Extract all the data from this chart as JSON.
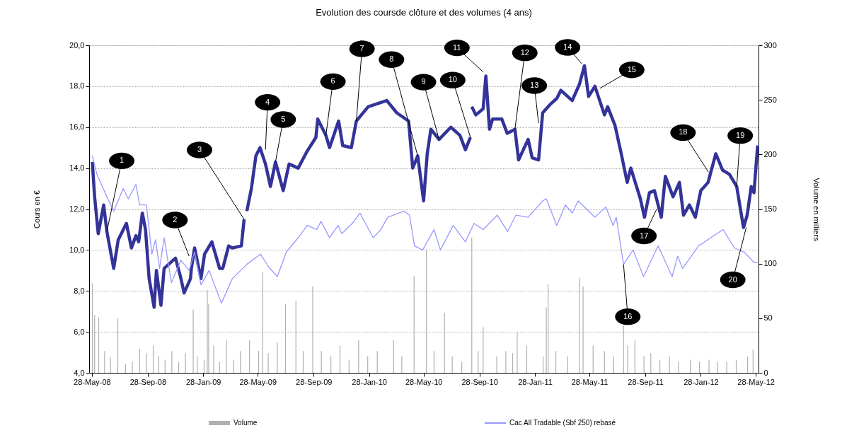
{
  "chart_data": {
    "type": "line",
    "title": "Evolution des coursde clôture et des volumes (4 ans)",
    "ylabel": "Cours en €",
    "y2label": "Volume en milliers",
    "xlim": [
      "2008-05-22",
      "2012-06-03"
    ],
    "xticks": [
      {
        "value": "2008-05-28",
        "label": "28-May-08"
      },
      {
        "value": "2008-09-28",
        "label": "28-Sep-08"
      },
      {
        "value": "2009-01-28",
        "label": "28-Jan-09"
      },
      {
        "value": "2009-05-28",
        "label": "28-May-09"
      },
      {
        "value": "2009-09-28",
        "label": "28-Sep-09"
      },
      {
        "value": "2010-01-28",
        "label": "28-Jan-10"
      },
      {
        "value": "2010-05-28",
        "label": "28-May-10"
      },
      {
        "value": "2010-09-28",
        "label": "28-Sep-10"
      },
      {
        "value": "2011-01-28",
        "label": "28-Jan-11"
      },
      {
        "value": "2011-05-28",
        "label": "28-May-11"
      },
      {
        "value": "2011-09-28",
        "label": "28-Sep-11"
      },
      {
        "value": "2012-01-28",
        "label": "28-Jan-12"
      },
      {
        "value": "2012-05-28",
        "label": "28-May-12"
      }
    ],
    "ylim": [
      4,
      20
    ],
    "yticks": [
      {
        "value": 4,
        "label": "4,0"
      },
      {
        "value": 6,
        "label": "6,0"
      },
      {
        "value": 8,
        "label": "8,0"
      },
      {
        "value": 10,
        "label": "10,0"
      },
      {
        "value": 12,
        "label": "12,0"
      },
      {
        "value": 14,
        "label": "14,0"
      },
      {
        "value": 16,
        "label": "16,0"
      },
      {
        "value": 18,
        "label": "18,0"
      },
      {
        "value": 20,
        "label": "20,0"
      }
    ],
    "y2lim": [
      0,
      300
    ],
    "y2ticks": [
      0,
      50,
      100,
      150,
      200,
      250,
      300
    ],
    "grid": "y",
    "legend": "bottom",
    "series": [
      {
        "name": "Volume",
        "type": "bar",
        "axis": "y2",
        "color": "#b0b0b0",
        "x": [
          "2008-05-29",
          "2008-06-03",
          "2008-06-12",
          "2008-06-25",
          "2008-07-08",
          "2008-07-24",
          "2008-08-10",
          "2008-08-25",
          "2008-09-10",
          "2008-09-25",
          "2008-10-10",
          "2008-10-22",
          "2008-11-05",
          "2008-11-20",
          "2008-12-05",
          "2008-12-20",
          "2009-01-06",
          "2009-01-15",
          "2009-01-30",
          "2009-02-06",
          "2009-02-09",
          "2009-02-20",
          "2009-03-05",
          "2009-03-20",
          "2009-04-05",
          "2009-04-20",
          "2009-05-10",
          "2009-05-30",
          "2009-06-08",
          "2009-06-20",
          "2009-07-10",
          "2009-07-28",
          "2009-08-20",
          "2009-09-05",
          "2009-09-26",
          "2009-10-15",
          "2009-11-05",
          "2009-11-25",
          "2009-12-15",
          "2010-01-05",
          "2010-01-25",
          "2010-02-15",
          "2010-03-23",
          "2010-04-10",
          "2010-05-07",
          "2010-06-03",
          "2010-06-20",
          "2010-07-13",
          "2010-07-30",
          "2010-08-20",
          "2010-09-11",
          "2010-09-25",
          "2010-10-06",
          "2010-11-05",
          "2010-11-25",
          "2010-12-10",
          "2010-12-20",
          "2011-01-10",
          "2011-02-15",
          "2011-02-22",
          "2011-02-26",
          "2011-03-15",
          "2011-04-10",
          "2011-05-06",
          "2011-05-14",
          "2011-06-05",
          "2011-06-30",
          "2011-07-20",
          "2011-08-11",
          "2011-08-20",
          "2011-09-05",
          "2011-09-25",
          "2011-10-10",
          "2011-10-30",
          "2011-11-20",
          "2011-12-10",
          "2012-01-05",
          "2012-01-25",
          "2012-02-15",
          "2012-03-05",
          "2012-03-25",
          "2012-04-15",
          "2012-05-10",
          "2012-05-22"
        ],
        "values": [
          82,
          53,
          51,
          20,
          14,
          50,
          8,
          10,
          22,
          18,
          25,
          15,
          12,
          20,
          10,
          18,
          58,
          15,
          12,
          76,
          63,
          25,
          10,
          30,
          12,
          20,
          30,
          20,
          92,
          18,
          28,
          63,
          66,
          20,
          79,
          20,
          15,
          25,
          12,
          30,
          15,
          20,
          30,
          15,
          89,
          113,
          20,
          55,
          15,
          10,
          124,
          20,
          42,
          15,
          20,
          18,
          37,
          25,
          15,
          60,
          81,
          20,
          15,
          87,
          79,
          25,
          20,
          15,
          43,
          25,
          30,
          15,
          18,
          12,
          15,
          10,
          12,
          10,
          12,
          10,
          10,
          12,
          15,
          21
        ]
      },
      {
        "color": "#333399",
        "x": [
          "2008-05-29",
          "2008-06-03",
          "2008-06-11",
          "2008-06-23",
          "2008-06-30",
          "2008-07-15",
          "2008-07-25",
          "2008-08-12",
          "2008-08-23",
          "2008-09-02",
          "2008-09-08",
          "2008-09-16",
          "2008-09-23",
          "2008-10-01",
          "2008-10-12",
          "2008-10-17",
          "2008-10-27",
          "2008-11-03",
          "2008-11-28",
          "2008-12-09",
          "2008-12-17",
          "2008-12-31",
          "2009-01-02",
          "2009-01-09",
          "2009-01-23",
          "2009-01-31",
          "2009-02-16",
          "2009-03-05",
          "2009-03-12",
          "2009-03-25",
          "2009-04-02",
          "2009-04-22",
          "2009-04-28",
          "2009-05-01",
          "2009-05-04",
          "2009-05-14",
          "2009-05-24",
          "2009-06-02",
          "2009-06-14",
          "2009-06-25",
          "2009-07-06",
          "2009-07-23",
          "2009-08-05",
          "2009-08-25",
          "2009-09-13",
          "2009-10-03",
          "2009-10-07",
          "2009-10-25",
          "2009-11-02",
          "2009-11-22",
          "2009-12-01",
          "2009-12-20",
          "2009-12-31",
          "2010-01-26",
          "2010-03-08",
          "2010-03-30",
          "2010-04-25",
          "2010-05-04",
          "2010-05-15",
          "2010-05-28",
          "2010-06-05",
          "2010-06-13",
          "2010-07-01",
          "2010-07-27",
          "2010-08-16",
          "2010-08-28",
          "2010-09-08",
          "2010-09-10",
          "2010-09-11",
          "2010-09-20",
          "2010-10-06",
          "2010-10-12",
          "2010-10-20",
          "2010-10-27",
          "2010-11-16",
          "2010-11-28",
          "2010-12-15",
          "2010-12-23",
          "2011-01-13",
          "2011-01-22",
          "2011-02-05",
          "2011-02-14",
          "2011-03-02",
          "2011-03-17",
          "2011-03-26",
          "2011-04-20",
          "2011-05-06",
          "2011-05-17",
          "2011-05-26",
          "2011-06-09",
          "2011-06-30",
          "2011-07-07",
          "2011-07-23",
          "2011-08-06",
          "2011-08-19",
          "2011-08-27",
          "2011-09-17",
          "2011-09-26",
          "2011-10-07",
          "2011-10-18",
          "2011-11-02",
          "2011-11-11",
          "2011-11-28",
          "2011-12-12",
          "2011-12-21",
          "2012-01-03",
          "2012-01-16",
          "2012-01-28",
          "2012-02-13",
          "2012-03-01",
          "2012-03-16",
          "2012-03-31",
          "2012-04-16",
          "2012-05-01",
          "2012-05-09",
          "2012-05-18",
          "2012-05-24",
          "2012-06-01"
        ],
        "values": [
          14.3,
          12.6,
          10.8,
          12.2,
          10.9,
          9.1,
          10.5,
          11.3,
          10.1,
          10.7,
          10.4,
          11.8,
          11.0,
          8.6,
          7.2,
          9.0,
          7.3,
          9.1,
          9.6,
          8.7,
          7.9,
          8.6,
          9.1,
          10.1,
          8.6,
          9.8,
          10.4,
          9.1,
          9.1,
          10.2,
          10.1,
          10.2,
          11.5,
          null,
          11.9,
          13.0,
          14.6,
          15.0,
          14.2,
          13.1,
          14.3,
          12.9,
          14.2,
          14.0,
          14.8,
          15.5,
          16.4,
          15.6,
          15.0,
          16.3,
          15.1,
          15.0,
          16.3,
          17.0,
          17.3,
          16.7,
          16.3,
          14.0,
          14.6,
          12.4,
          14.7,
          15.9,
          15.4,
          16.0,
          15.6,
          14.9,
          15.5,
          null,
          17.0,
          16.6,
          16.9,
          18.5,
          15.9,
          16.4,
          16.4,
          15.7,
          15.9,
          14.4,
          15.4,
          14.5,
          14.4,
          16.7,
          17.1,
          17.4,
          17.8,
          17.3,
          18.1,
          19.0,
          17.5,
          18.0,
          16.6,
          17.0,
          16.1,
          14.7,
          13.3,
          14.0,
          12.5,
          11.6,
          12.8,
          12.9,
          11.6,
          13.6,
          12.6,
          13.3,
          11.7,
          12.2,
          11.6,
          12.9,
          13.3,
          14.7,
          13.9,
          13.7,
          13.1,
          11.1,
          11.7,
          13.1,
          12.8,
          15.1
        ]
      },
      {
        "name": "Cac All Tradable (Sbf 250) rebasé",
        "color": "#9999ff",
        "x": [
          "2008-05-29",
          "2008-06-08",
          "2008-06-30",
          "2008-07-15",
          "2008-08-05",
          "2008-08-16",
          "2008-09-02",
          "2008-09-10",
          "2008-09-25",
          "2008-10-07",
          "2008-10-15",
          "2008-10-24",
          "2008-11-03",
          "2008-11-19",
          "2008-12-10",
          "2008-12-28",
          "2009-01-09",
          "2009-01-23",
          "2009-02-10",
          "2009-03-09",
          "2009-04-02",
          "2009-05-04",
          "2009-06-03",
          "2009-06-20",
          "2009-07-10",
          "2009-07-30",
          "2009-08-25",
          "2009-09-14",
          "2009-10-05",
          "2009-10-14",
          "2009-11-02",
          "2009-11-21",
          "2009-11-29",
          "2009-12-22",
          "2010-01-08",
          "2010-02-06",
          "2010-02-23",
          "2010-03-10",
          "2010-04-15",
          "2010-04-27",
          "2010-05-08",
          "2010-05-26",
          "2010-06-20",
          "2010-07-04",
          "2010-08-01",
          "2010-08-28",
          "2010-09-16",
          "2010-10-06",
          "2010-11-06",
          "2010-11-29",
          "2010-12-17",
          "2011-01-13",
          "2011-02-14",
          "2011-02-22",
          "2011-03-17",
          "2011-04-05",
          "2011-04-20",
          "2011-05-03",
          "2011-06-09",
          "2011-07-03",
          "2011-07-19",
          "2011-07-26",
          "2011-08-11",
          "2011-09-01",
          "2011-09-24",
          "2011-10-26",
          "2011-11-26",
          "2011-12-08",
          "2011-12-19",
          "2012-01-23",
          "2012-02-19",
          "2012-03-17",
          "2012-04-11",
          "2012-05-02",
          "2012-05-24",
          "2012-06-01"
        ],
        "values": [
          14.6,
          13.7,
          12.6,
          11.9,
          13.0,
          12.5,
          13.2,
          12.2,
          12.2,
          9.8,
          10.5,
          9.1,
          10.6,
          8.4,
          9.5,
          9.0,
          9.9,
          8.3,
          9.0,
          7.4,
          8.6,
          9.3,
          9.8,
          9.2,
          8.7,
          9.9,
          10.6,
          11.2,
          11.0,
          11.4,
          10.6,
          11.2,
          10.8,
          11.3,
          11.8,
          10.6,
          11.0,
          11.6,
          11.9,
          11.7,
          10.2,
          10.0,
          11.0,
          10.0,
          11.2,
          10.4,
          11.3,
          11.0,
          11.7,
          10.9,
          11.7,
          11.6,
          12.4,
          12.5,
          11.2,
          12.2,
          11.8,
          12.4,
          11.6,
          12.1,
          11.2,
          11.6,
          9.3,
          10.0,
          8.7,
          10.2,
          8.7,
          9.7,
          9.1,
          10.2,
          10.6,
          11.0,
          10.1,
          9.9,
          9.4,
          9.4
        ]
      }
    ],
    "annotations": [
      {
        "text": "1",
        "x": "2008-06-30",
        "y": 10.9
      },
      {
        "text": "2",
        "x": "2008-12-28",
        "y": 9.7
      },
      {
        "text": "3",
        "x": "2009-04-28",
        "y": 11.5
      },
      {
        "text": "4",
        "x": "2009-06-14",
        "y": 14.9
      },
      {
        "text": "5",
        "x": "2009-07-06",
        "y": 14.3
      },
      {
        "text": "6",
        "x": "2009-10-25",
        "y": 15.6
      },
      {
        "text": "7",
        "x": "2009-12-31",
        "y": 16.3
      },
      {
        "text": "8",
        "x": "2010-05-15",
        "y": 14.6
      },
      {
        "text": "9",
        "x": "2010-07-01",
        "y": 15.4
      },
      {
        "text": "10",
        "x": "2010-09-08",
        "y": 15.5
      },
      {
        "text": "11",
        "x": "2010-10-06",
        "y": 18.7
      },
      {
        "text": "12",
        "x": "2010-12-15",
        "y": 15.9
      },
      {
        "text": "13",
        "x": "2011-02-05",
        "y": 16.2
      },
      {
        "text": "14",
        "x": "2011-05-11",
        "y": 19.1
      },
      {
        "text": "15",
        "x": "2011-06-20",
        "y": 17.9
      },
      {
        "text": "16",
        "x": "2011-08-11",
        "y": 9.3
      },
      {
        "text": "17",
        "x": "2011-10-23",
        "y": 12.0
      },
      {
        "text": "18",
        "x": "2012-02-14",
        "y": 13.8
      },
      {
        "text": "19",
        "x": "2012-04-16",
        "y": 13.1
      },
      {
        "text": "20",
        "x": "2012-05-07",
        "y": 11.1
      }
    ]
  }
}
